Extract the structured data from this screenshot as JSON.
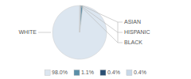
{
  "chart_data": {
    "type": "pie",
    "categories": [
      "WHITE",
      "ASIAN",
      "HISPANIC",
      "BLACK"
    ],
    "values": [
      98.0,
      1.1,
      0.4,
      0.4
    ],
    "value_labels": [
      "98.0%",
      "1.1%",
      "0.4%",
      "0.4%"
    ],
    "colors": [
      "#dce6f0",
      "#5b8fa8",
      "#2b4f72",
      "#c8d8e8"
    ],
    "legend": "bottom"
  }
}
